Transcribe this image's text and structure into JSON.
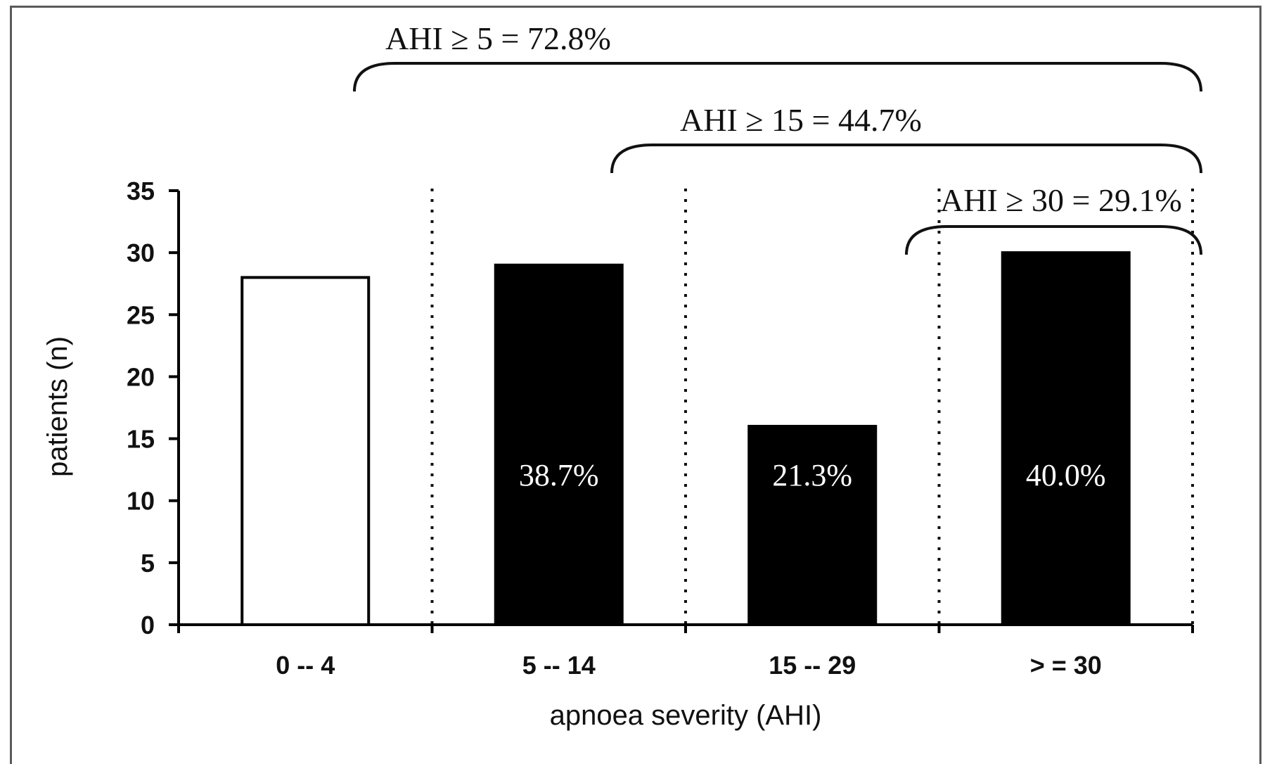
{
  "chart_data": {
    "type": "bar",
    "categories": [
      "0 -- 4",
      "5 -- 14",
      "15 -- 29",
      "> = 30"
    ],
    "values": [
      28,
      29,
      16,
      30
    ],
    "bar_colors": [
      "#ffffff",
      "#000000",
      "#000000",
      "#000000"
    ],
    "bar_labels": [
      "",
      "38.7%",
      "21.3%",
      "40.0%"
    ],
    "xlabel": "apnoea severity (AHI)",
    "ylabel": "patients (n)",
    "ylim": [
      0,
      35
    ],
    "yticks": [
      0,
      5,
      10,
      15,
      20,
      25,
      30,
      35
    ],
    "grid": false,
    "separators": "dotted vertical lines between categories",
    "brackets": [
      {
        "label": "AHI ≥ 5 = 72.8%",
        "from_category": 1,
        "to_category": 3
      },
      {
        "label": "AHI ≥ 15 = 44.7%",
        "from_category": 2,
        "to_category": 3
      },
      {
        "label": "AHI ≥ 30 = 29.1%",
        "from_category": 3,
        "to_category": 3
      }
    ]
  }
}
